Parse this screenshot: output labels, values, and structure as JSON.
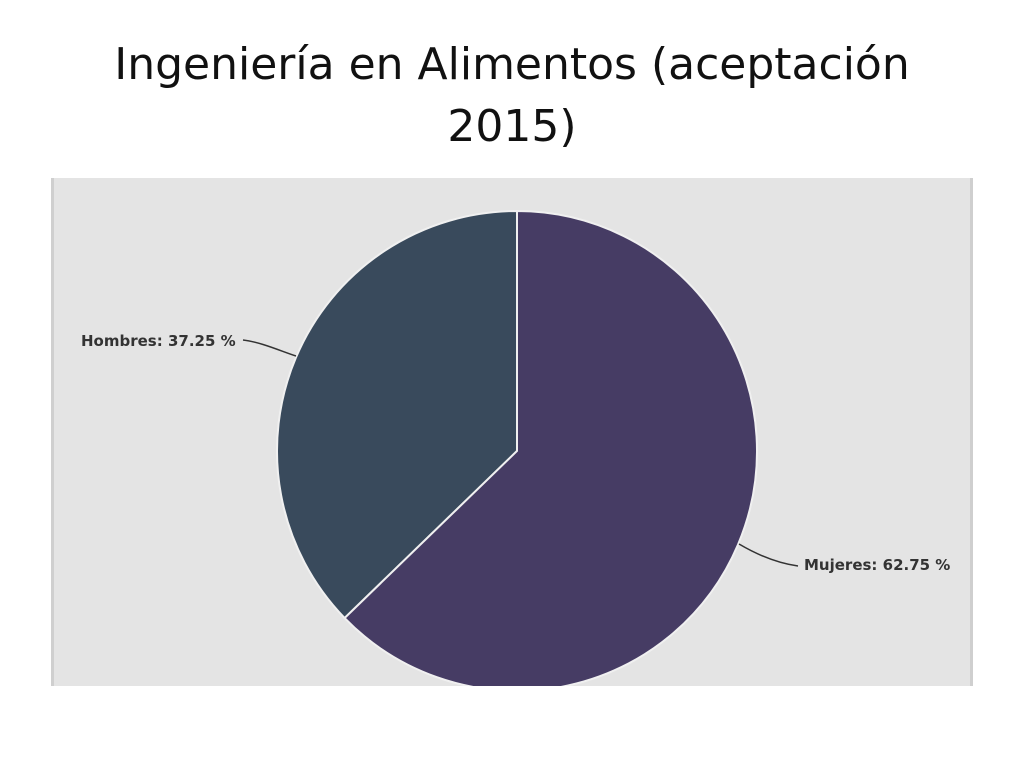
{
  "slide": {
    "title": "Ingeniería en Alimentos (aceptación 2015)"
  },
  "chart_data": {
    "type": "pie",
    "title": "",
    "slices": [
      {
        "name": "Hombres",
        "value": 37.25,
        "label": "Hombres: 37.25 %",
        "color": "#394a5c"
      },
      {
        "name": "Mujeres",
        "value": 62.75,
        "label": "Mujeres: 62.75 %",
        "color": "#463c64"
      }
    ],
    "start": "12 o'clock",
    "direction": "counter-clockwise from top for first slice",
    "background": "#e4e4e4",
    "slice_border_color": "#f0f0f0"
  }
}
